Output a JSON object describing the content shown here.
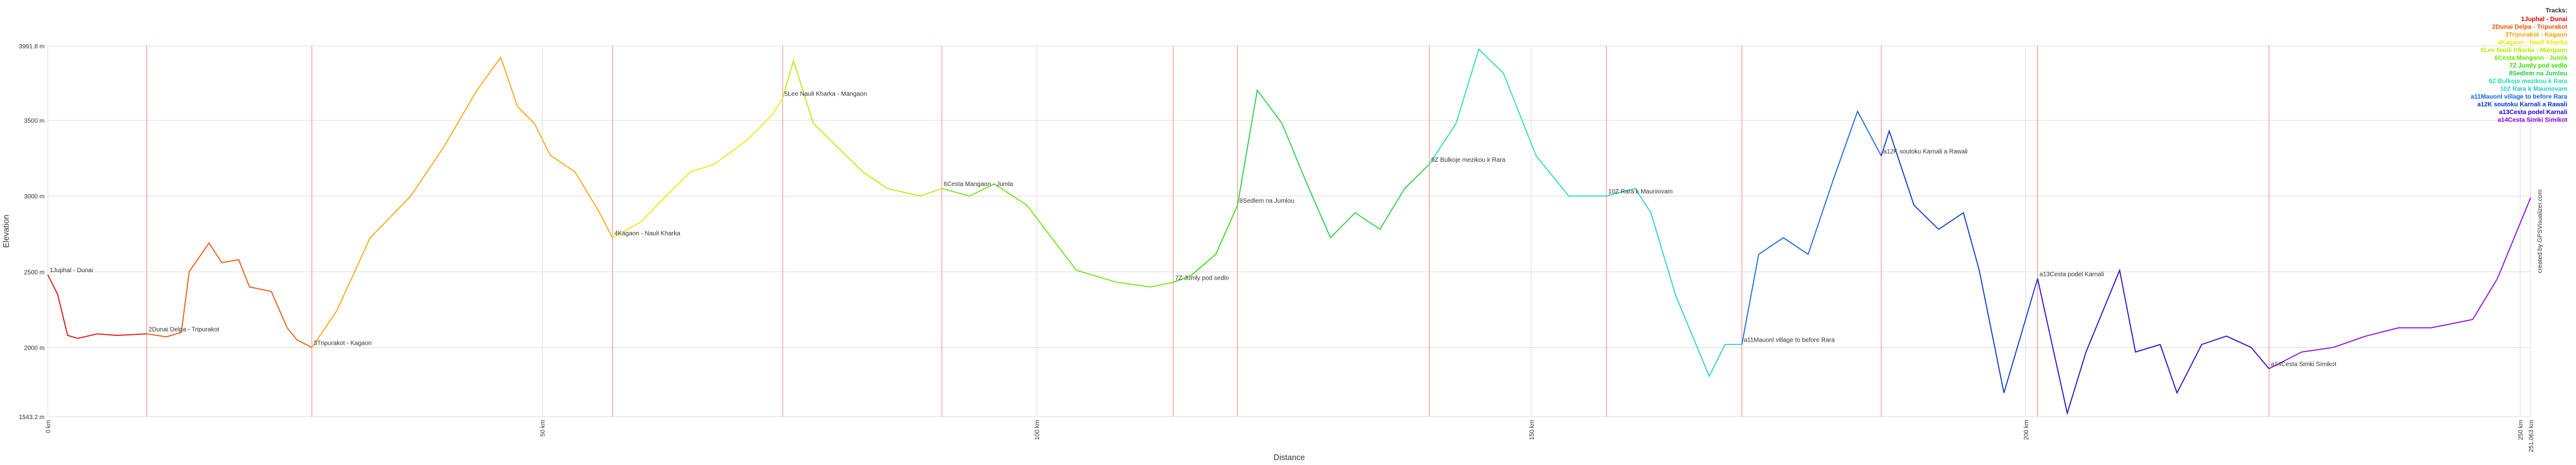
{
  "chart_data": {
    "type": "line",
    "x_label": "Distance",
    "y_label": "Elevation",
    "legend_title": "Tracks:",
    "credit": "created by GPSVisualizer.com",
    "legend_position": "top-right",
    "grid": true,
    "boundary_color": "#ff8080",
    "xlim": [
      0,
      251.063
    ],
    "ylim": [
      1543.2,
      3991.8
    ],
    "xticks": [
      {
        "value": 0,
        "label": "0 km"
      },
      {
        "value": 50,
        "label": "50 km"
      },
      {
        "value": 100,
        "label": "100 km"
      },
      {
        "value": 150,
        "label": "150 km"
      },
      {
        "value": 200,
        "label": "200 km"
      },
      {
        "value": 250,
        "label": "250 km"
      },
      {
        "value": 251.063,
        "label": "251.063 km"
      }
    ],
    "yticks": [
      {
        "value": 1543.2,
        "label": "1543.2 m"
      },
      {
        "value": 2000,
        "label": "2000 m"
      },
      {
        "value": 2500,
        "label": "2500 m"
      },
      {
        "value": 3000,
        "label": "3000 m"
      },
      {
        "value": 3500,
        "label": "3500 m"
      },
      {
        "value": 3991.8,
        "label": "3991.8 m"
      }
    ],
    "series": [
      {
        "name": "1Juphal - Dunai",
        "color": "#e00000",
        "x": [
          0,
          1,
          2,
          3,
          5,
          7,
          10
        ],
        "values": [
          2480,
          2350,
          2080,
          2060,
          2090,
          2080,
          2090
        ]
      },
      {
        "name": "2Dunai Delpa - Tripurakot",
        "color": "#f05000",
        "x": [
          10,
          12,
          13.5,
          14.3,
          16.3,
          17.6,
          19.3,
          20.4,
          22.6,
          24.2,
          25.2,
          26.7
        ],
        "values": [
          2090,
          2070,
          2100,
          2500,
          2690,
          2560,
          2580,
          2400,
          2370,
          2130,
          2050,
          2000
        ]
      },
      {
        "name": "3Tripurakot - Kagaon",
        "color": "#f5a300",
        "x": [
          26.7,
          29.2,
          32.6,
          36.7,
          40,
          43.4,
          45.8,
          47.5,
          49.2,
          50.8,
          53.3,
          55.8,
          57.1
        ],
        "values": [
          2000,
          2240,
          2725,
          3000,
          3320,
          3700,
          3916,
          3590,
          3480,
          3270,
          3160,
          2890,
          2725
        ]
      },
      {
        "name": "4Kagaon - Nauli Kharka",
        "color": "#e8e800",
        "x": [
          57.1,
          60,
          62.5,
          65,
          67.4,
          70.8,
          73.3,
          74.3
        ],
        "values": [
          2725,
          2830,
          3000,
          3160,
          3210,
          3375,
          3540,
          3645
        ]
      },
      {
        "name": "5Lee Nauli Kharka - Mangaon",
        "color": "#b0ee00",
        "x": [
          74.3,
          75.4,
          77.4,
          79.9,
          82.4,
          84.9,
          88.2,
          90.4
        ],
        "values": [
          3645,
          3895,
          3480,
          3320,
          3160,
          3050,
          3000,
          3050
        ]
      },
      {
        "name": "6Cesta Mangaon - Jumla",
        "color": "#66e600",
        "x": [
          90.4,
          93.2,
          95.7,
          99,
          101.5,
          104,
          108.1,
          111.5,
          113.8
        ],
        "values": [
          3050,
          3000,
          3080,
          2940,
          2725,
          2510,
          2430,
          2400,
          2430
        ]
      },
      {
        "name": "7Z Jumly pod sedlo",
        "color": "#33dd00",
        "x": [
          113.8,
          115.6,
          118.1,
          120.3
        ],
        "values": [
          2430,
          2475,
          2615,
          2940
        ]
      },
      {
        "name": "8Sedlem na Jumlou",
        "color": "#22cc44",
        "x": [
          120.3,
          122.3,
          124.8,
          127.2,
          129.7,
          132.2,
          134.7,
          137.2,
          139.7
        ],
        "values": [
          2940,
          3700,
          3480,
          3100,
          2725,
          2890,
          2780,
          3050,
          3210
        ]
      },
      {
        "name": "9Z Bulkoje mezikou k Rara",
        "color": "#22ddaa",
        "x": [
          139.7,
          142.4,
          144.7,
          147.2,
          150.5,
          153.8,
          157.6
        ],
        "values": [
          3210,
          3480,
          3970,
          3810,
          3265,
          3000,
          3000
        ]
      },
      {
        "name": "10Z Rara k Mauniovam",
        "color": "#22cccc",
        "x": [
          157.6,
          160.5,
          162.1,
          164.6,
          168,
          169.6,
          171.3
        ],
        "values": [
          3000,
          3050,
          2890,
          2345,
          1810,
          2020,
          2020
        ]
      },
      {
        "name": "a11Mauonl village to before Rara",
        "color": "#1166dd",
        "x": [
          171.3,
          173,
          175.5,
          178,
          180.5,
          183,
          185.4
        ],
        "values": [
          2020,
          2615,
          2725,
          2615,
          3100,
          3560,
          3265
        ]
      },
      {
        "name": "a12K soutoku Karnali a Rawali",
        "color": "#0033cc",
        "x": [
          185.4,
          186.2,
          188.7,
          191.2,
          193.7,
          195.3,
          197.8,
          201.2
        ],
        "values": [
          3265,
          3430,
          2940,
          2780,
          2890,
          2510,
          1700,
          2455
        ]
      },
      {
        "name": "a13Cesta podel Karnali",
        "color": "#2200cc",
        "x": [
          201.2,
          204.2,
          206.1,
          209.5,
          211.1,
          213.6,
          215.3,
          217.8,
          220.3,
          222.8,
          224.6
        ],
        "values": [
          2455,
          1566,
          1970,
          2510,
          1970,
          2020,
          1700,
          2020,
          2075,
          2000,
          1860
        ]
      },
      {
        "name": "a14Cesta Simki Simikot",
        "color": "#8800dd",
        "x": [
          224.6,
          227.9,
          231.1,
          234.4,
          237.7,
          241,
          245.2,
          247.7,
          251.063
        ],
        "values": [
          1860,
          1970,
          2000,
          2075,
          2130,
          2130,
          2185,
          2455,
          2990
        ]
      }
    ]
  }
}
